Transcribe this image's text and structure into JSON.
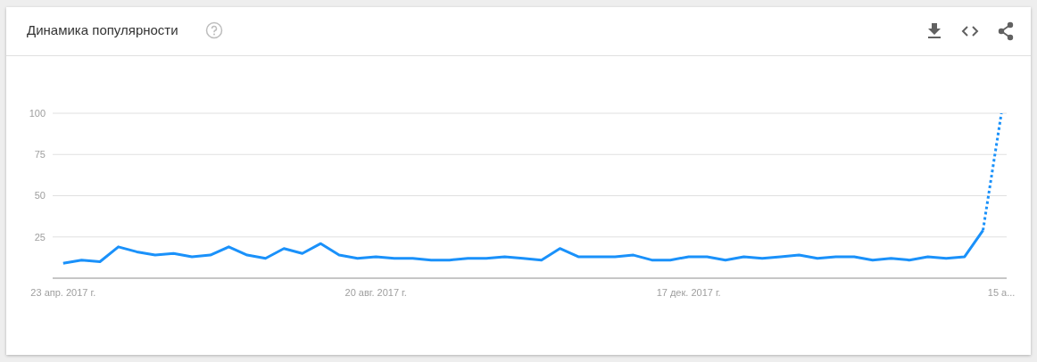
{
  "chart_data": {
    "type": "line",
    "title": "Динамика популярности",
    "x": [
      "2017-04-23",
      "2017-04-30",
      "2017-05-07",
      "2017-05-14",
      "2017-05-21",
      "2017-05-28",
      "2017-06-04",
      "2017-06-11",
      "2017-06-18",
      "2017-06-25",
      "2017-07-02",
      "2017-07-09",
      "2017-07-16",
      "2017-07-23",
      "2017-07-30",
      "2017-08-06",
      "2017-08-13",
      "2017-08-20",
      "2017-08-27",
      "2017-09-03",
      "2017-09-10",
      "2017-09-17",
      "2017-09-24",
      "2017-10-01",
      "2017-10-08",
      "2017-10-15",
      "2017-10-22",
      "2017-10-29",
      "2017-11-05",
      "2017-11-12",
      "2017-11-19",
      "2017-11-26",
      "2017-12-03",
      "2017-12-10",
      "2017-12-17",
      "2017-12-24",
      "2017-12-31",
      "2018-01-07",
      "2018-01-14",
      "2018-01-21",
      "2018-01-28",
      "2018-02-04",
      "2018-02-11",
      "2018-02-18",
      "2018-02-25",
      "2018-03-04",
      "2018-03-11",
      "2018-03-18",
      "2018-03-25",
      "2018-04-01",
      "2018-04-08",
      "2018-04-15"
    ],
    "series": [
      {
        "color": "#1a91fa",
        "line_style": "solid",
        "values": [
          9,
          11,
          10,
          19,
          16,
          14,
          15,
          13,
          14,
          19,
          14,
          12,
          18,
          15,
          21,
          14,
          12,
          13,
          12,
          12,
          11,
          11,
          12,
          12,
          13,
          12,
          11,
          18,
          13,
          13,
          13,
          14,
          11,
          11,
          13,
          13,
          11,
          13,
          12,
          13,
          14,
          12,
          13,
          13,
          11,
          12,
          11,
          13,
          12,
          13,
          29,
          null
        ]
      },
      {
        "color": "#1a91fa",
        "line_style": "dotted",
        "values": [
          null,
          null,
          null,
          null,
          null,
          null,
          null,
          null,
          null,
          null,
          null,
          null,
          null,
          null,
          null,
          null,
          null,
          null,
          null,
          null,
          null,
          null,
          null,
          null,
          null,
          null,
          null,
          null,
          null,
          null,
          null,
          null,
          null,
          null,
          null,
          null,
          null,
          null,
          null,
          null,
          null,
          null,
          null,
          null,
          null,
          null,
          null,
          null,
          null,
          null,
          29,
          100
        ]
      }
    ],
    "xlim": [
      "2017-04-19",
      "2018-04-17"
    ],
    "xticks": [
      {
        "value": "2017-04-23",
        "label": "23 апр. 2017 г."
      },
      {
        "value": "2017-08-20",
        "label": "20 авг. 2017 г."
      },
      {
        "value": "2017-12-17",
        "label": "17 дек. 2017 г."
      },
      {
        "value": "2018-04-15",
        "label": "15 а..."
      }
    ],
    "ylim": [
      0,
      100
    ],
    "yticks": [
      25,
      50,
      75,
      100
    ],
    "grid": "y",
    "marker": "none"
  }
}
